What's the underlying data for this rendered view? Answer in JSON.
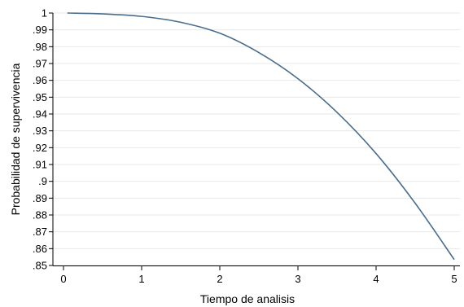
{
  "chart_data": {
    "type": "line",
    "xlabel": "Tiempo de analisis",
    "ylabel": "Probabilidad de supervivencia",
    "xlim": [
      0,
      5
    ],
    "ylim": [
      0.85,
      1.0
    ],
    "x_ticks": [
      0,
      1,
      2,
      3,
      4,
      5
    ],
    "x_tick_labels": [
      "0",
      "1",
      "2",
      "3",
      "4",
      "5"
    ],
    "y_ticks": [
      0.85,
      0.86,
      0.87,
      0.88,
      0.89,
      0.9,
      0.91,
      0.92,
      0.93,
      0.94,
      0.95,
      0.96,
      0.97,
      0.98,
      0.99,
      1.0
    ],
    "y_tick_labels": [
      ".85",
      ".86",
      ".87",
      ".88",
      ".89",
      ".9",
      ".91",
      ".92",
      ".93",
      ".94",
      ".95",
      ".96",
      ".97",
      ".98",
      ".99",
      "1"
    ],
    "grid": "horizontal",
    "series": [
      {
        "color": "#4a6d8c",
        "x": [
          0.05,
          0.5,
          1.0,
          1.5,
          2.0,
          2.5,
          3.0,
          3.5,
          4.0,
          4.5,
          5.0
        ],
        "values": [
          1.0,
          0.9995,
          0.998,
          0.9945,
          0.988,
          0.9765,
          0.961,
          0.941,
          0.9165,
          0.887,
          0.8535
        ]
      }
    ]
  }
}
